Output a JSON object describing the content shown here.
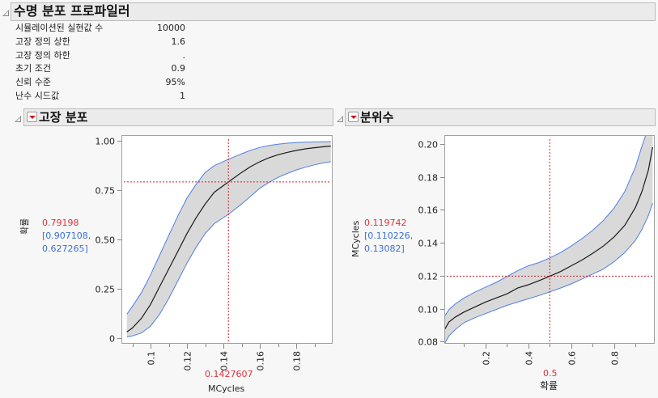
{
  "report": {
    "title": "수명 분포 프로파일러",
    "info_rows": [
      {
        "label": "시뮬레이션된 실현값 수",
        "value": "10000"
      },
      {
        "label": "고장 정의 상한",
        "value": "1.6"
      },
      {
        "label": "고장 정의 하한",
        "value": "."
      },
      {
        "label": "초기 조건",
        "value": "0.9"
      },
      {
        "label": "신뢰 수준",
        "value": "95%"
      },
      {
        "label": "난수 시드값",
        "value": "1"
      }
    ]
  },
  "failure_panel": {
    "title": "고장 분포",
    "y_title": "확률",
    "x_title": "MCycles",
    "y_readout": "0.79198",
    "y_ci_line1": "[0.907108,",
    "y_ci_line2": "0.627265]",
    "x_readout": "0.1427607"
  },
  "quantile_panel": {
    "title": "분위수",
    "y_title": "MCycles",
    "x_title": "확률",
    "y_readout": "0.119742",
    "y_ci_line1": "[0.110226,",
    "y_ci_line2": "0.13082]",
    "x_readout": "0.5"
  },
  "colors": {
    "estimate": "#1a1a1a",
    "ci_band_fill": "#d9d9d9",
    "ci_band_edge": "#4f7fe0",
    "crosshair": "#d0202c",
    "readout_red": "#e0303a",
    "readout_blue": "#3a6fd8"
  },
  "chart_data": [
    {
      "type": "line",
      "title": "고장 분포",
      "xlabel": "MCycles",
      "ylabel": "확률",
      "xlim": [
        0.084,
        0.2
      ],
      "ylim": [
        -0.03,
        1.03
      ],
      "x_ticks": [
        0.1,
        0.12,
        0.14,
        0.16,
        0.18
      ],
      "x_tick_labels": [
        "0.1",
        "0.12",
        "0.14",
        "0.16",
        "0.18"
      ],
      "y_ticks": [
        0,
        0.25,
        0.5,
        0.75,
        1.0
      ],
      "y_tick_labels": [
        "0",
        "0.25",
        "0.50",
        "0.75",
        "1.00"
      ],
      "grid": false,
      "x": [
        0.087,
        0.09,
        0.095,
        0.1,
        0.105,
        0.11,
        0.115,
        0.12,
        0.125,
        0.13,
        0.135,
        0.1427607,
        0.15,
        0.155,
        0.16,
        0.165,
        0.17,
        0.175,
        0.18,
        0.185,
        0.19,
        0.195,
        0.199
      ],
      "series": [
        {
          "name": "estimate",
          "values": [
            0.03,
            0.05,
            0.1,
            0.17,
            0.26,
            0.35,
            0.44,
            0.53,
            0.61,
            0.68,
            0.74,
            0.79198,
            0.84,
            0.87,
            0.895,
            0.915,
            0.93,
            0.942,
            0.952,
            0.96,
            0.966,
            0.971,
            0.974
          ]
        },
        {
          "name": "upper_ci",
          "values": [
            0.12,
            0.16,
            0.23,
            0.32,
            0.42,
            0.52,
            0.62,
            0.71,
            0.78,
            0.84,
            0.875,
            0.907108,
            0.935,
            0.953,
            0.967,
            0.977,
            0.984,
            0.989,
            0.992,
            0.994,
            0.995,
            0.996,
            0.997
          ]
        },
        {
          "name": "lower_ci",
          "values": [
            0.005,
            0.01,
            0.025,
            0.06,
            0.12,
            0.2,
            0.29,
            0.38,
            0.46,
            0.53,
            0.58,
            0.627265,
            0.68,
            0.72,
            0.76,
            0.79,
            0.815,
            0.835,
            0.853,
            0.867,
            0.879,
            0.889,
            0.895
          ]
        }
      ],
      "crosshair": {
        "x": 0.1427607,
        "y": 0.79198
      }
    },
    {
      "type": "line",
      "title": "분위수",
      "xlabel": "확률",
      "ylabel": "MCycles",
      "xlim": [
        0.008,
        0.99
      ],
      "ylim": [
        0.0787,
        0.2053
      ],
      "x_ticks": [
        0.2,
        0.4,
        0.6,
        0.8
      ],
      "x_tick_labels": [
        "0.2",
        "0.4",
        "0.6",
        "0.8"
      ],
      "y_ticks": [
        0.08,
        0.1,
        0.12,
        0.14,
        0.16,
        0.18,
        0.2
      ],
      "y_tick_labels": [
        "0.08",
        "0.10",
        "0.12",
        "0.14",
        "0.16",
        "0.18",
        "0.20"
      ],
      "grid": false,
      "x": [
        0.01,
        0.03,
        0.06,
        0.1,
        0.15,
        0.2,
        0.25,
        0.3,
        0.35,
        0.4,
        0.45,
        0.5,
        0.55,
        0.6,
        0.65,
        0.7,
        0.75,
        0.8,
        0.85,
        0.9,
        0.93,
        0.96,
        0.98
      ],
      "series": [
        {
          "name": "estimate",
          "values": [
            0.0875,
            0.092,
            0.095,
            0.098,
            0.101,
            0.104,
            0.1065,
            0.109,
            0.1125,
            0.1145,
            0.117,
            0.119742,
            0.1225,
            0.126,
            0.1295,
            0.1335,
            0.138,
            0.1435,
            0.1505,
            0.1615,
            0.171,
            0.184,
            0.198
          ]
        },
        {
          "name": "upper_ci",
          "values": [
            0.0955,
            0.0995,
            0.103,
            0.1065,
            0.11,
            0.113,
            0.116,
            0.1195,
            0.123,
            0.126,
            0.128,
            0.13082,
            0.134,
            0.138,
            0.1425,
            0.1475,
            0.1535,
            0.161,
            0.171,
            0.186,
            0.1985,
            0.21,
            0.22
          ]
        },
        {
          "name": "lower_ci",
          "values": [
            0.079,
            0.0835,
            0.0875,
            0.0915,
            0.0945,
            0.097,
            0.0995,
            0.102,
            0.104,
            0.106,
            0.108,
            0.110226,
            0.1125,
            0.115,
            0.118,
            0.121,
            0.124,
            0.1285,
            0.134,
            0.1415,
            0.148,
            0.1565,
            0.164
          ]
        }
      ],
      "crosshair": {
        "x": 0.5,
        "y": 0.119742
      }
    }
  ]
}
